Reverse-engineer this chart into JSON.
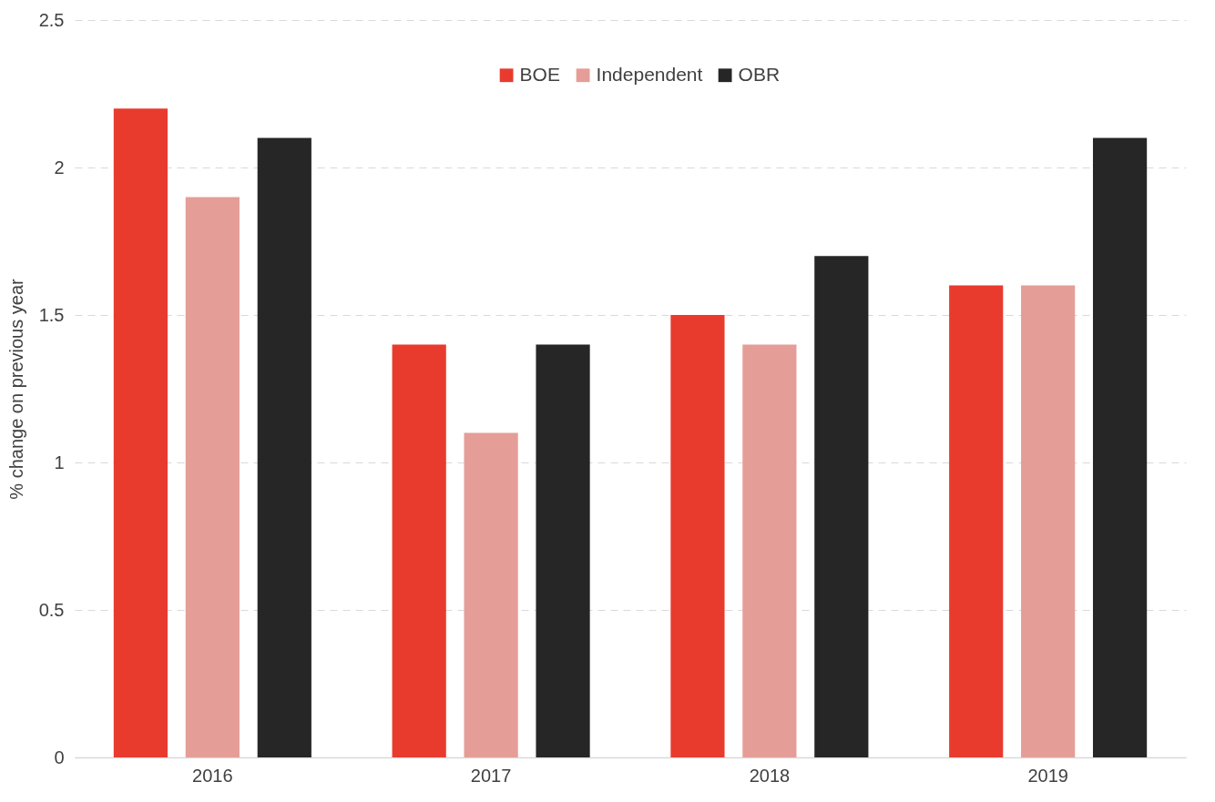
{
  "chart_data": {
    "type": "bar",
    "ylabel": "% change on previous year",
    "categories": [
      "2016",
      "2017",
      "2018",
      "2019"
    ],
    "series": [
      {
        "name": "BOE",
        "color": "#e83b2e",
        "values": [
          2.2,
          1.4,
          1.5,
          1.6
        ]
      },
      {
        "name": "Independent",
        "color": "#e59d97",
        "values": [
          1.9,
          1.1,
          1.4,
          1.6
        ]
      },
      {
        "name": "OBR",
        "color": "#262626",
        "values": [
          2.1,
          1.4,
          1.7,
          2.1
        ]
      }
    ],
    "ylim": [
      0,
      2.5
    ],
    "yticks": [
      0,
      0.5,
      1,
      1.5,
      2,
      2.5
    ],
    "grid": "y",
    "legend": "top"
  }
}
